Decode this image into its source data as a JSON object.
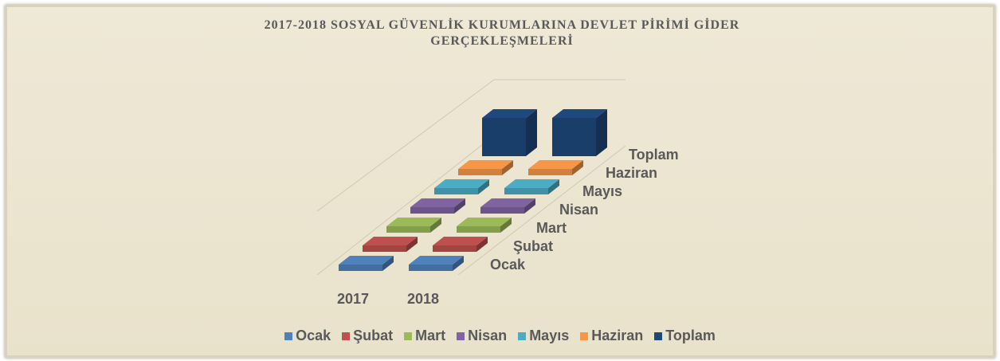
{
  "chart_data": {
    "type": "bar3d",
    "title": "2017-2018 SOSYAL GÜVENLİK KURUMLARINA DEVLET PİRİMİ GİDER GERÇEKLEŞMELERİ",
    "categories": [
      "2017",
      "2018"
    ],
    "series": [
      {
        "name": "Ocak",
        "color": "#4f81bd",
        "values": [
          1,
          1
        ]
      },
      {
        "name": "Şubat",
        "color": "#c0504d",
        "values": [
          1,
          1
        ]
      },
      {
        "name": "Mart",
        "color": "#9bbb59",
        "values": [
          1,
          1
        ]
      },
      {
        "name": "Nisan",
        "color": "#8064a2",
        "values": [
          1,
          1
        ]
      },
      {
        "name": "Mayıs",
        "color": "#4bacc6",
        "values": [
          1,
          1
        ]
      },
      {
        "name": "Haziran",
        "color": "#f79646",
        "values": [
          1,
          1
        ]
      },
      {
        "name": "Toplam",
        "color": "#1f497d",
        "values": [
          6,
          6
        ]
      }
    ],
    "legend": "bottom"
  }
}
